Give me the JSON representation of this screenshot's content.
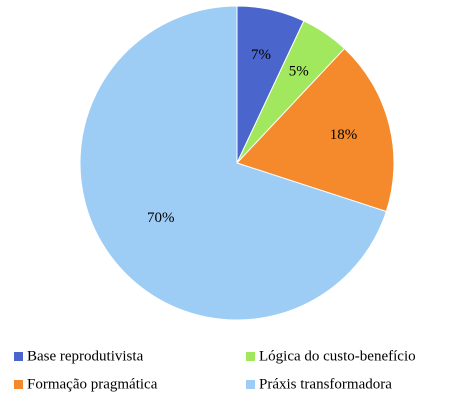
{
  "chart_data": {
    "type": "pie",
    "categories": [
      "Base reprodutivista",
      "Lógica do custo-benefício",
      "Formação pragmática",
      "Práxis transformadora"
    ],
    "values": [
      7,
      5,
      18,
      70
    ],
    "value_labels": [
      "7%",
      "5%",
      "18%",
      "70%"
    ],
    "colors": [
      "#4a66cc",
      "#a2e85e",
      "#f58a2c",
      "#9dcdf5"
    ],
    "legend": "bottom"
  }
}
